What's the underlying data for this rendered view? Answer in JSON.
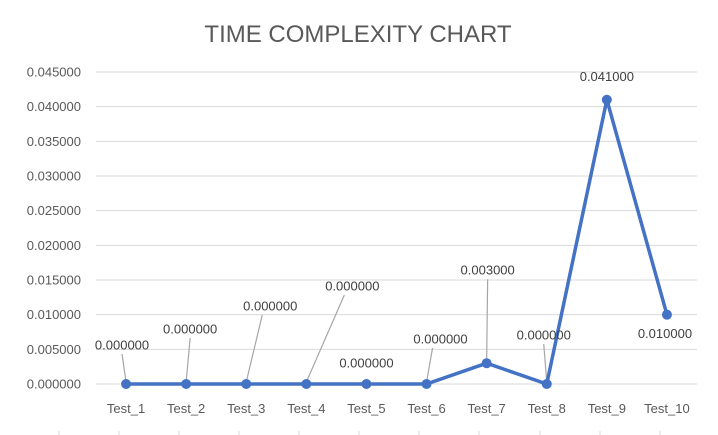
{
  "chart_data": {
    "type": "line",
    "title": "TIME COMPLEXITY CHART",
    "categories": [
      "Test_1",
      "Test_2",
      "Test_3",
      "Test_4",
      "Test_5",
      "Test_6",
      "Test_7",
      "Test_8",
      "Test_9",
      "Test_10"
    ],
    "series": [
      {
        "values": [
          0.0,
          0.0,
          0.0,
          0.0,
          0.0,
          0.0,
          0.003,
          0.0,
          0.041,
          0.01
        ],
        "data_labels": [
          "0.000000",
          "0.000000",
          "0.000000",
          "0.000000",
          "0.000000",
          "0.000000",
          "0.003000",
          "0.000000",
          "0.041000",
          "0.010000"
        ]
      }
    ],
    "y_ticks": [
      "0.000000",
      "0.005000",
      "0.010000",
      "0.015000",
      "0.020000",
      "0.025000",
      "0.030000",
      "0.035000",
      "0.040000",
      "0.045000"
    ],
    "ylim": [
      0,
      0.045
    ],
    "grid": true,
    "legend": "none",
    "colors": {
      "line": "#4472C4",
      "grid": "#D9D9D9",
      "leader": "#A6A6A6",
      "text": "#595959"
    }
  }
}
